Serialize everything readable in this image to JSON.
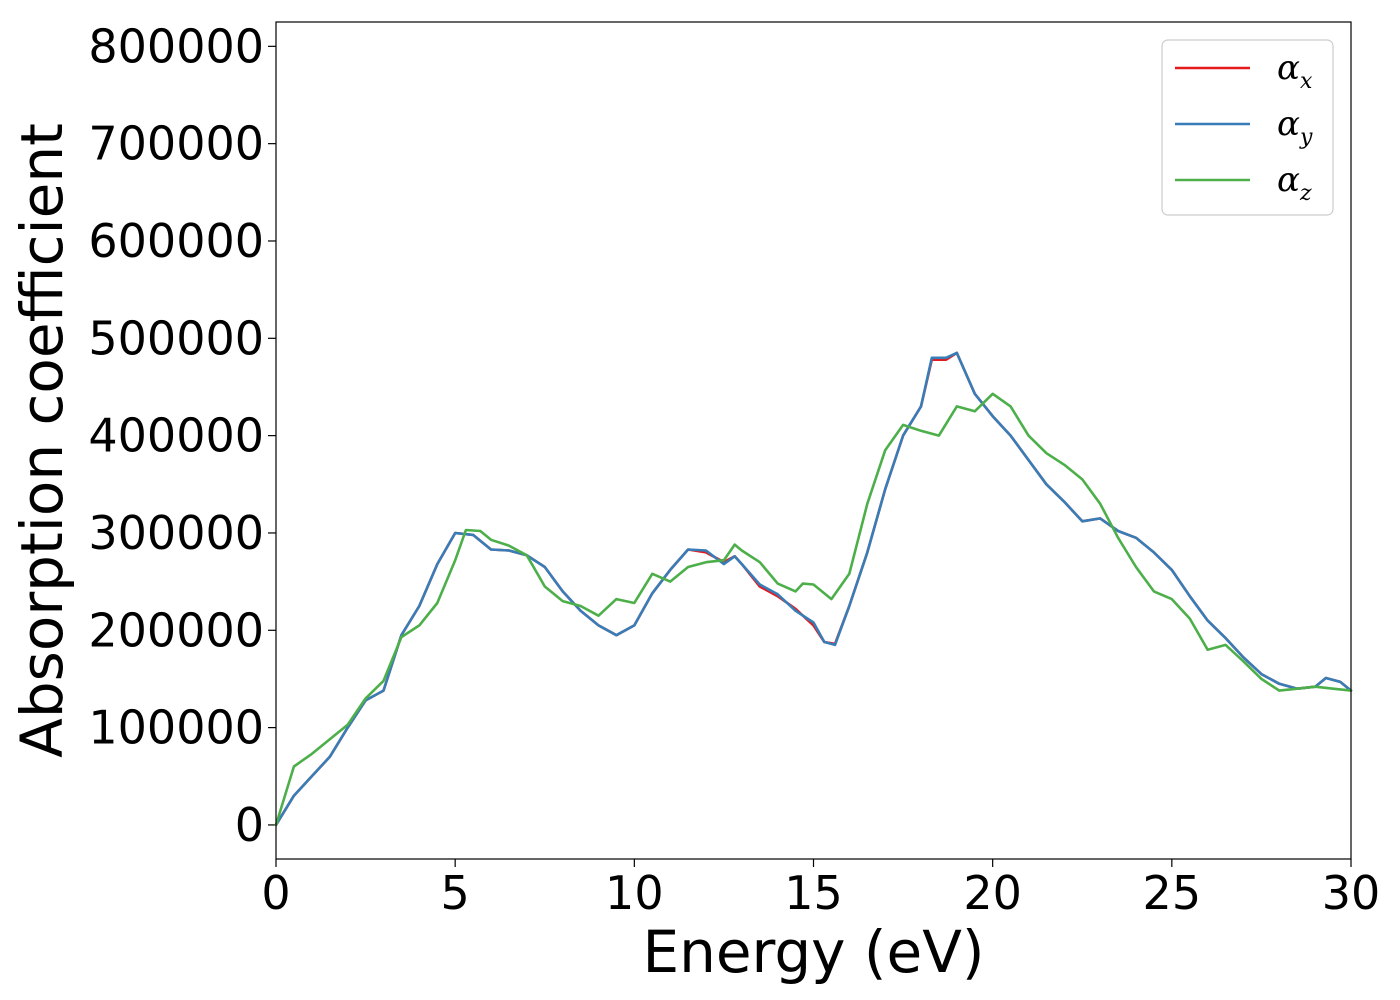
{
  "chart_data": {
    "type": "line",
    "title": "",
    "xlabel": "Energy (eV)",
    "ylabel": "Absorption coefficient",
    "xlim": [
      0,
      30
    ],
    "ylim": [
      -35000,
      825000
    ],
    "x_ticks": [
      0,
      5,
      10,
      15,
      20,
      25,
      30
    ],
    "y_ticks": [
      0,
      100000,
      200000,
      300000,
      400000,
      500000,
      600000,
      700000,
      800000
    ],
    "grid": false,
    "legend_position": "top-right",
    "series": [
      {
        "name": "α",
        "subscript": "x",
        "color": "#e41a1c",
        "points": [
          [
            0,
            0
          ],
          [
            0.5,
            30000
          ],
          [
            1,
            50000
          ],
          [
            1.5,
            70000
          ],
          [
            2,
            100000
          ],
          [
            2.5,
            128000
          ],
          [
            3,
            138000
          ],
          [
            3.5,
            195000
          ],
          [
            4,
            225000
          ],
          [
            4.5,
            268000
          ],
          [
            5,
            300000
          ],
          [
            5.5,
            298000
          ],
          [
            6,
            283000
          ],
          [
            6.5,
            282000
          ],
          [
            7,
            277000
          ],
          [
            7.5,
            265000
          ],
          [
            8,
            240000
          ],
          [
            8.5,
            220000
          ],
          [
            9,
            205000
          ],
          [
            9.5,
            195000
          ],
          [
            10,
            205000
          ],
          [
            10.5,
            238000
          ],
          [
            11,
            262000
          ],
          [
            11.5,
            283000
          ],
          [
            12,
            280000
          ],
          [
            12.5,
            270000
          ],
          [
            12.8,
            276000
          ],
          [
            13,
            268000
          ],
          [
            13.5,
            245000
          ],
          [
            14,
            235000
          ],
          [
            14.5,
            222000
          ],
          [
            15,
            205000
          ],
          [
            15.3,
            188000
          ],
          [
            15.6,
            186000
          ],
          [
            16,
            225000
          ],
          [
            16.5,
            280000
          ],
          [
            17,
            345000
          ],
          [
            17.5,
            400000
          ],
          [
            18,
            430000
          ],
          [
            18.3,
            478000
          ],
          [
            18.7,
            478000
          ],
          [
            19,
            485000
          ],
          [
            19.5,
            443000
          ],
          [
            20,
            420000
          ],
          [
            20.5,
            400000
          ],
          [
            21,
            375000
          ],
          [
            21.5,
            350000
          ],
          [
            22,
            332000
          ],
          [
            22.5,
            312000
          ],
          [
            23,
            315000
          ],
          [
            23.5,
            302000
          ],
          [
            24,
            295000
          ],
          [
            24.5,
            280000
          ],
          [
            25,
            262000
          ],
          [
            25.5,
            235000
          ],
          [
            26,
            210000
          ],
          [
            26.5,
            192000
          ],
          [
            27,
            172000
          ],
          [
            27.5,
            155000
          ],
          [
            28,
            145000
          ],
          [
            28.5,
            140000
          ],
          [
            29,
            142000
          ],
          [
            29.3,
            151000
          ],
          [
            29.7,
            147000
          ],
          [
            30,
            138000
          ]
        ]
      },
      {
        "name": "α",
        "subscript": "y",
        "color": "#377eb8",
        "points": [
          [
            0,
            0
          ],
          [
            0.5,
            30000
          ],
          [
            1,
            50000
          ],
          [
            1.5,
            70000
          ],
          [
            2,
            100000
          ],
          [
            2.5,
            128000
          ],
          [
            3,
            138000
          ],
          [
            3.5,
            195000
          ],
          [
            4,
            225000
          ],
          [
            4.5,
            268000
          ],
          [
            5,
            300000
          ],
          [
            5.5,
            298000
          ],
          [
            6,
            283000
          ],
          [
            6.5,
            282000
          ],
          [
            7,
            277000
          ],
          [
            7.5,
            265000
          ],
          [
            8,
            240000
          ],
          [
            8.5,
            220000
          ],
          [
            9,
            205000
          ],
          [
            9.5,
            195000
          ],
          [
            10,
            205000
          ],
          [
            10.5,
            238000
          ],
          [
            11,
            262000
          ],
          [
            11.5,
            283000
          ],
          [
            12,
            282000
          ],
          [
            12.5,
            268000
          ],
          [
            12.8,
            276000
          ],
          [
            13,
            268000
          ],
          [
            13.5,
            247000
          ],
          [
            14,
            237000
          ],
          [
            14.5,
            220000
          ],
          [
            15,
            208000
          ],
          [
            15.3,
            188000
          ],
          [
            15.6,
            185000
          ],
          [
            16,
            225000
          ],
          [
            16.5,
            280000
          ],
          [
            17,
            345000
          ],
          [
            17.5,
            400000
          ],
          [
            18,
            430000
          ],
          [
            18.3,
            480000
          ],
          [
            18.7,
            480000
          ],
          [
            19,
            485000
          ],
          [
            19.5,
            443000
          ],
          [
            20,
            420000
          ],
          [
            20.5,
            400000
          ],
          [
            21,
            375000
          ],
          [
            21.5,
            350000
          ],
          [
            22,
            332000
          ],
          [
            22.5,
            312000
          ],
          [
            23,
            315000
          ],
          [
            23.5,
            302000
          ],
          [
            24,
            295000
          ],
          [
            24.5,
            280000
          ],
          [
            25,
            262000
          ],
          [
            25.5,
            235000
          ],
          [
            26,
            210000
          ],
          [
            26.5,
            192000
          ],
          [
            27,
            172000
          ],
          [
            27.5,
            155000
          ],
          [
            28,
            145000
          ],
          [
            28.5,
            140000
          ],
          [
            29,
            142000
          ],
          [
            29.3,
            151000
          ],
          [
            29.7,
            147000
          ],
          [
            30,
            138000
          ]
        ]
      },
      {
        "name": "α",
        "subscript": "z",
        "color": "#4daf4a",
        "points": [
          [
            0,
            0
          ],
          [
            0.5,
            60000
          ],
          [
            1,
            73000
          ],
          [
            1.5,
            88000
          ],
          [
            2,
            103000
          ],
          [
            2.5,
            130000
          ],
          [
            3,
            148000
          ],
          [
            3.5,
            193000
          ],
          [
            4,
            205000
          ],
          [
            4.5,
            228000
          ],
          [
            5,
            272000
          ],
          [
            5.3,
            303000
          ],
          [
            5.7,
            302000
          ],
          [
            6,
            293000
          ],
          [
            6.5,
            287000
          ],
          [
            7,
            277000
          ],
          [
            7.5,
            245000
          ],
          [
            8,
            230000
          ],
          [
            8.5,
            225000
          ],
          [
            9,
            215000
          ],
          [
            9.5,
            232000
          ],
          [
            10,
            228000
          ],
          [
            10.5,
            258000
          ],
          [
            11,
            250000
          ],
          [
            11.5,
            265000
          ],
          [
            12,
            270000
          ],
          [
            12.5,
            272000
          ],
          [
            12.8,
            288000
          ],
          [
            13,
            282000
          ],
          [
            13.5,
            270000
          ],
          [
            14,
            248000
          ],
          [
            14.5,
            240000
          ],
          [
            14.7,
            248000
          ],
          [
            15,
            247000
          ],
          [
            15.5,
            232000
          ],
          [
            16,
            258000
          ],
          [
            16.5,
            330000
          ],
          [
            17,
            385000
          ],
          [
            17.5,
            411000
          ],
          [
            18,
            405000
          ],
          [
            18.5,
            400000
          ],
          [
            19,
            430000
          ],
          [
            19.5,
            425000
          ],
          [
            20,
            443000
          ],
          [
            20.5,
            430000
          ],
          [
            21,
            400000
          ],
          [
            21.5,
            382000
          ],
          [
            22,
            370000
          ],
          [
            22.5,
            355000
          ],
          [
            23,
            330000
          ],
          [
            23.5,
            295000
          ],
          [
            24,
            265000
          ],
          [
            24.5,
            240000
          ],
          [
            25,
            232000
          ],
          [
            25.5,
            212000
          ],
          [
            26,
            180000
          ],
          [
            26.5,
            185000
          ],
          [
            27,
            168000
          ],
          [
            27.5,
            150000
          ],
          [
            28,
            138000
          ],
          [
            28.5,
            140000
          ],
          [
            29,
            142000
          ],
          [
            29.5,
            140000
          ],
          [
            30,
            138000
          ]
        ]
      }
    ]
  }
}
